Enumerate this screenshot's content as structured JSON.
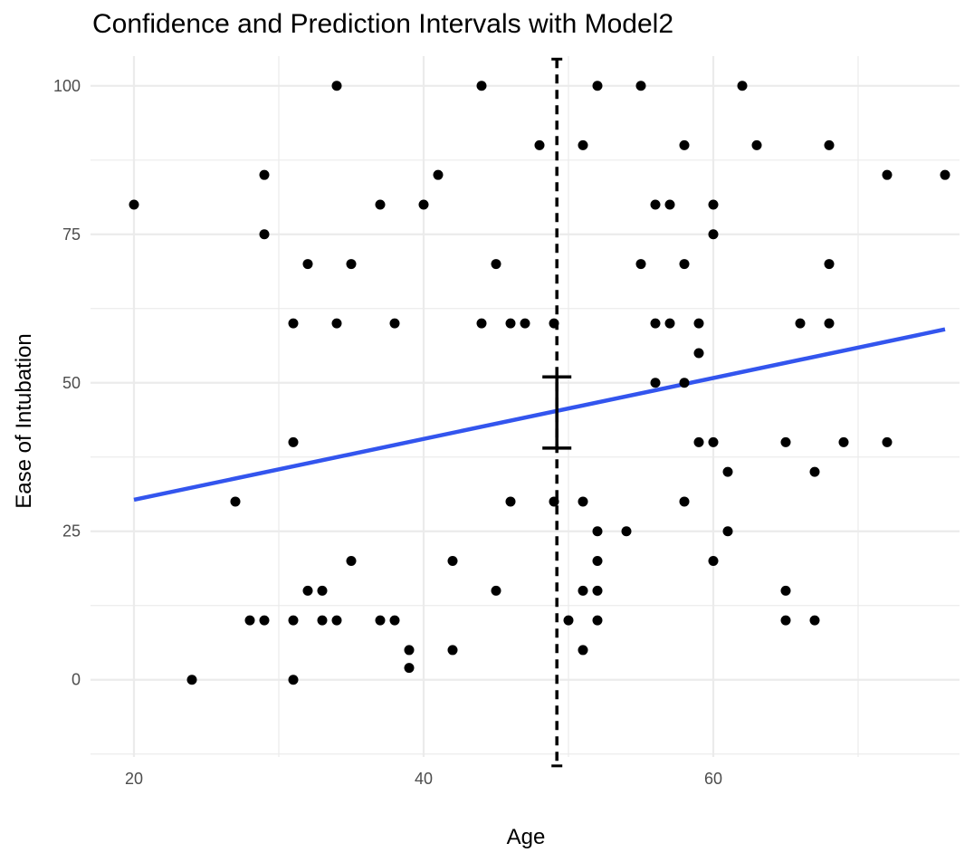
{
  "chart_data": {
    "type": "scatter",
    "title": "Confidence and Prediction Intervals with Model2",
    "xlabel": "Age",
    "ylabel": "Ease of Intubation",
    "xlim": [
      17,
      77
    ],
    "ylim": [
      -13,
      105
    ],
    "x_ticks": [
      20,
      40,
      60
    ],
    "y_ticks": [
      0,
      25,
      50,
      75,
      100
    ],
    "grid": true,
    "colors": {
      "points": "#000000",
      "fit_line": "#3355ee",
      "grid": "#ebebeb",
      "ci": "#000000",
      "pi": "#000000"
    },
    "points": [
      [
        20,
        80
      ],
      [
        24,
        0
      ],
      [
        27,
        30
      ],
      [
        28,
        10
      ],
      [
        29,
        85
      ],
      [
        29,
        75
      ],
      [
        29,
        10
      ],
      [
        31,
        60
      ],
      [
        31,
        40
      ],
      [
        31,
        10
      ],
      [
        31,
        0
      ],
      [
        32,
        70
      ],
      [
        32,
        15
      ],
      [
        33,
        15
      ],
      [
        33,
        10
      ],
      [
        34,
        100
      ],
      [
        34,
        60
      ],
      [
        34,
        10
      ],
      [
        35,
        70
      ],
      [
        35,
        20
      ],
      [
        37,
        80
      ],
      [
        37,
        10
      ],
      [
        38,
        60
      ],
      [
        38,
        10
      ],
      [
        39,
        5
      ],
      [
        39,
        2
      ],
      [
        40,
        80
      ],
      [
        41,
        85
      ],
      [
        42,
        20
      ],
      [
        42,
        5
      ],
      [
        44,
        100
      ],
      [
        44,
        60
      ],
      [
        45,
        70
      ],
      [
        45,
        15
      ],
      [
        46,
        60
      ],
      [
        46,
        30
      ],
      [
        47,
        60
      ],
      [
        48,
        90
      ],
      [
        49,
        60
      ],
      [
        49,
        30
      ],
      [
        50,
        10
      ],
      [
        51,
        90
      ],
      [
        51,
        30
      ],
      [
        51,
        15
      ],
      [
        51,
        5
      ],
      [
        52,
        100
      ],
      [
        52,
        25
      ],
      [
        52,
        20
      ],
      [
        52,
        15
      ],
      [
        52,
        10
      ],
      [
        54,
        25
      ],
      [
        55,
        100
      ],
      [
        55,
        70
      ],
      [
        56,
        80
      ],
      [
        56,
        60
      ],
      [
        56,
        50
      ],
      [
        57,
        80
      ],
      [
        57,
        60
      ],
      [
        58,
        90
      ],
      [
        58,
        70
      ],
      [
        58,
        50
      ],
      [
        58,
        30
      ],
      [
        59,
        60
      ],
      [
        59,
        55
      ],
      [
        59,
        40
      ],
      [
        60,
        80
      ],
      [
        60,
        75
      ],
      [
        60,
        40
      ],
      [
        60,
        20
      ],
      [
        61,
        35
      ],
      [
        61,
        25
      ],
      [
        62,
        100
      ],
      [
        63,
        90
      ],
      [
        65,
        40
      ],
      [
        65,
        15
      ],
      [
        65,
        10
      ],
      [
        66,
        60
      ],
      [
        67,
        35
      ],
      [
        67,
        10
      ],
      [
        68,
        90
      ],
      [
        68,
        70
      ],
      [
        68,
        60
      ],
      [
        69,
        40
      ],
      [
        72,
        85
      ],
      [
        72,
        40
      ],
      [
        76,
        85
      ]
    ],
    "fit_line": {
      "x": [
        20,
        76
      ],
      "y": [
        30.3,
        59
      ]
    },
    "interval_at_x": 49.2,
    "confidence_interval": [
      39,
      51
    ],
    "prediction_interval": [
      -14.5,
      104.5
    ]
  }
}
